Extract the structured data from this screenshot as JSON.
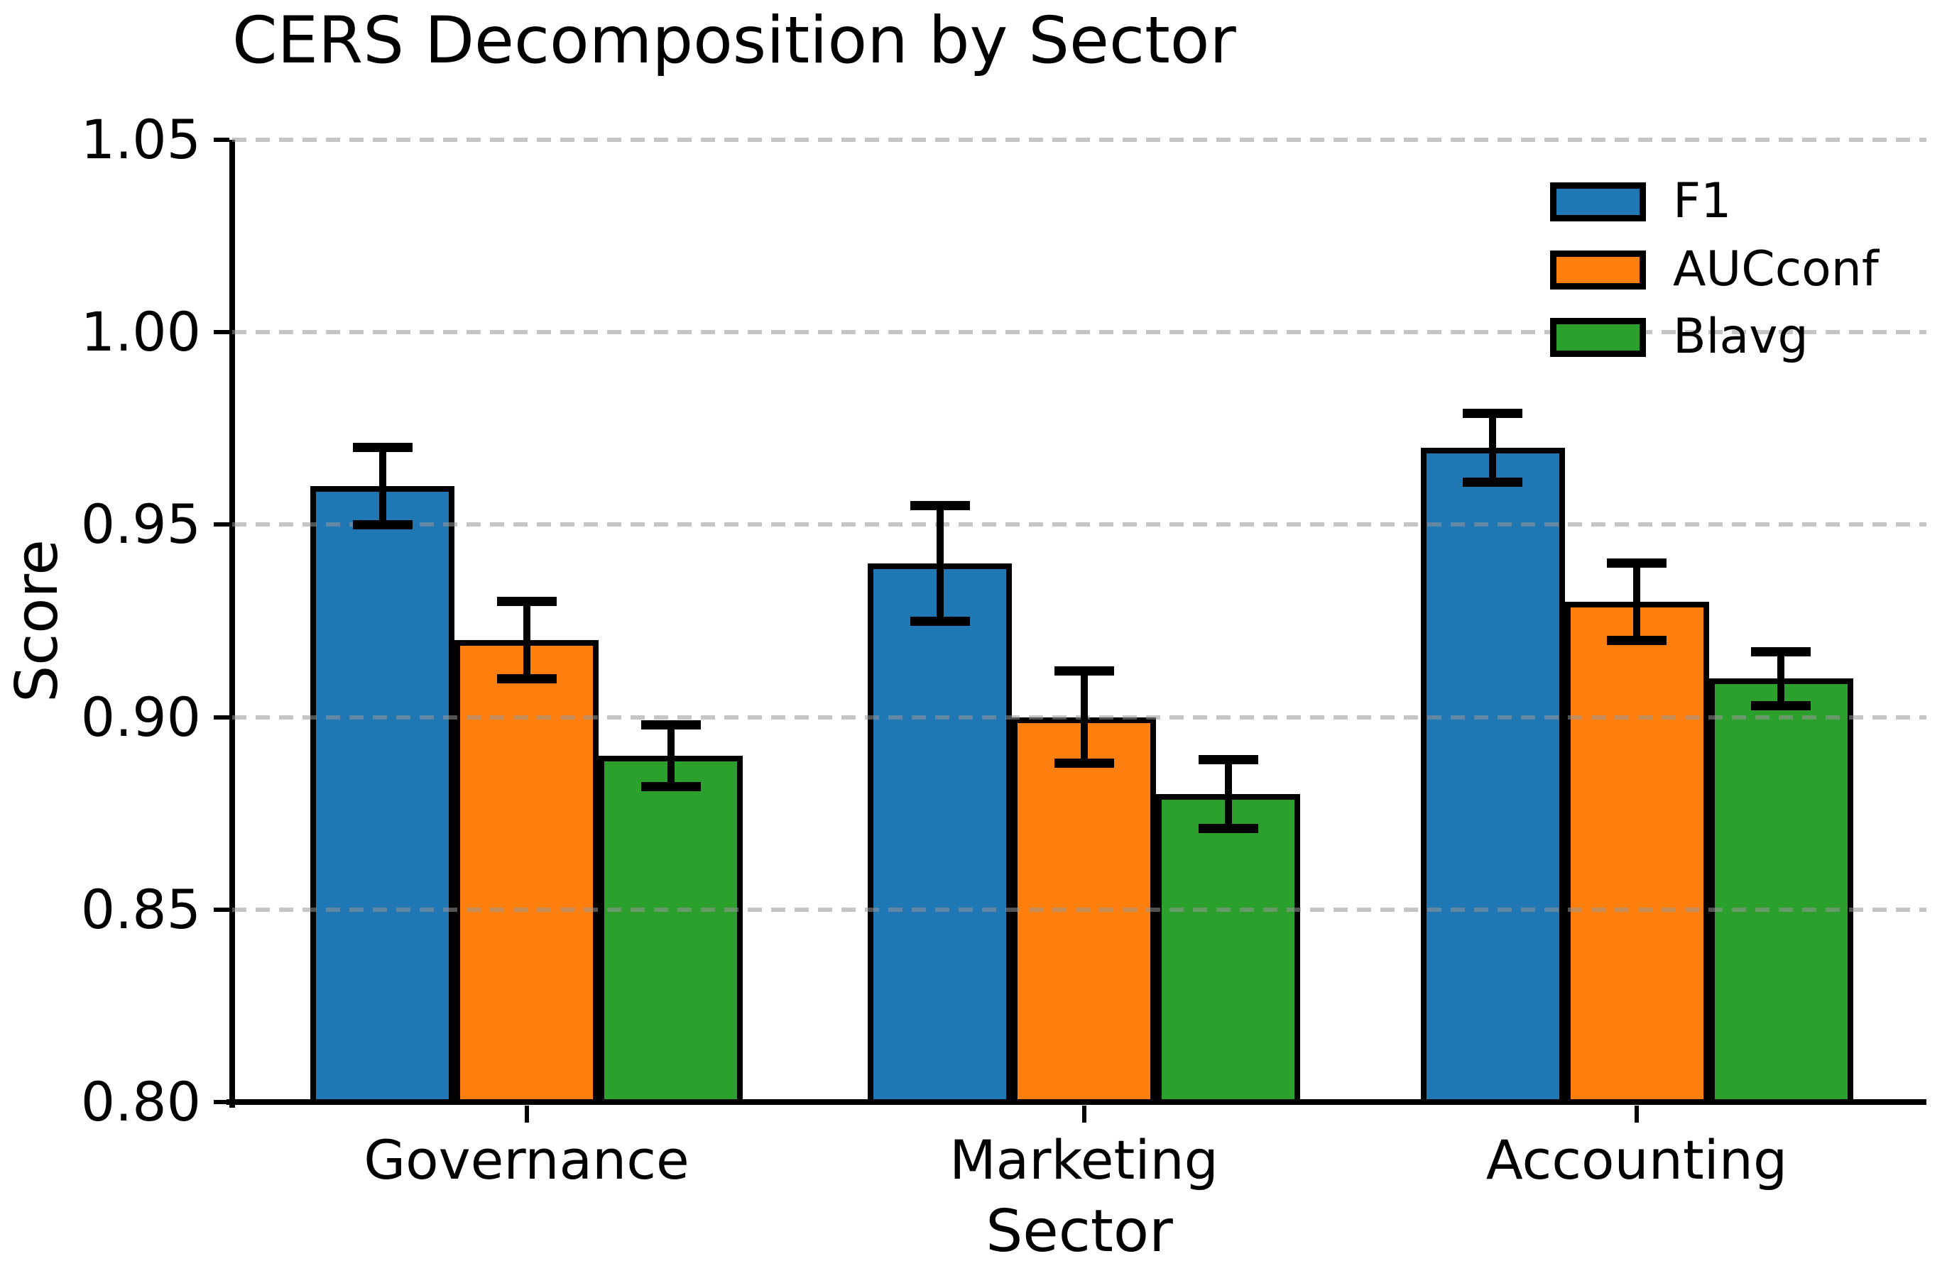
{
  "figure": {
    "background": "#ffffff",
    "text_color": "#000000"
  },
  "chart_data": {
    "type": "bar",
    "title": "CERS Decomposition by Sector",
    "xlabel": "Sector",
    "ylabel": "Score",
    "categories": [
      "Governance",
      "Marketing",
      "Accounting"
    ],
    "series": [
      {
        "name": "F1",
        "color": "#1f77b4",
        "values": [
          0.96,
          0.94,
          0.97
        ],
        "errors": [
          0.01,
          0.015,
          0.009
        ]
      },
      {
        "name": "AUCconf",
        "color": "#ff7f0e",
        "values": [
          0.92,
          0.9,
          0.93
        ],
        "errors": [
          0.01,
          0.012,
          0.01
        ]
      },
      {
        "name": "Blavg",
        "color": "#2ca02c",
        "values": [
          0.89,
          0.88,
          0.91
        ],
        "errors": [
          0.008,
          0.009,
          0.007
        ]
      }
    ],
    "ylim": [
      0.8,
      1.05
    ],
    "y_ticks": [
      0.8,
      0.85,
      0.9,
      0.95,
      1.0,
      1.05
    ],
    "y_tick_labels": [
      "0.80",
      "0.85",
      "0.90",
      "0.95",
      "1.00",
      "1.05"
    ],
    "grid": "horizontal dashed, drawn over bars",
    "grid_color": "#c5c5c5",
    "bar_edge_color": "#000000",
    "error_bar_color": "#000000",
    "legend_position": "upper right",
    "legend_entries": [
      "F1",
      "AUCconf",
      "Blavg"
    ]
  }
}
